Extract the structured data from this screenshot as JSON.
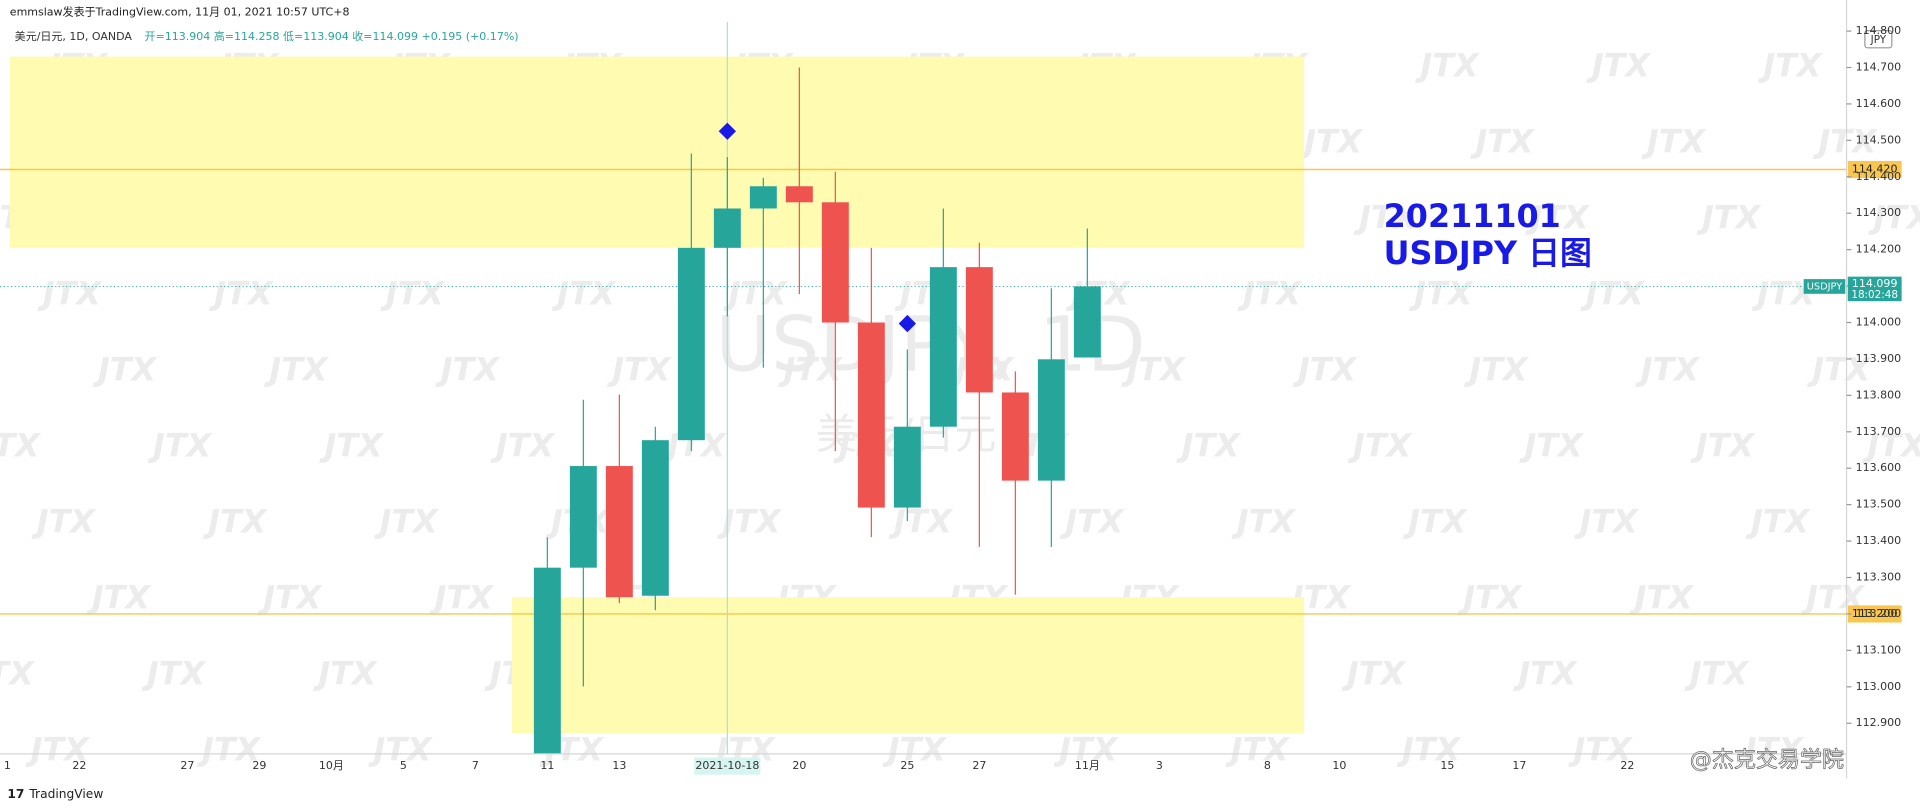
{
  "chart_data": {
    "type": "candlestick",
    "header_text": "emmslaw发表于TradingView.com, 11月 01, 2021 10:57 UTC+8",
    "legend_title": "美元/日元, 1D, OANDA",
    "legend_values": "开=113.904 高=114.258 低=113.904 收=114.099 +0.195 (+0.17%)",
    "watermark_symbol": "USDJPY, 1D",
    "watermark_desc": "美元/日元",
    "watermark_logo": "JTX",
    "annotation": [
      "20211101",
      "USDJPY 日图"
    ],
    "currency": "JPY",
    "branding": "TradingView",
    "source_watermark": "@杰克交易学院",
    "categories": [
      "1",
      null,
      "22",
      null,
      null,
      "27",
      null,
      "29",
      null,
      "10月",
      null,
      "5",
      null,
      "7",
      null,
      "11",
      null,
      "13",
      null,
      null,
      "2021-10-18",
      null,
      "20",
      null,
      null,
      "25",
      null,
      "27",
      null,
      null,
      "11月",
      null,
      "3",
      null,
      null,
      "8",
      null,
      "10",
      null,
      null,
      "15",
      null,
      "17",
      null,
      null,
      "22"
    ],
    "open": [
      null,
      null,
      null,
      null,
      null,
      null,
      null,
      null,
      null,
      null,
      null,
      null,
      null,
      null,
      null,
      112.8,
      113.327,
      113.606,
      113.25,
      113.677,
      114.205,
      114.313,
      114.374,
      114.33,
      114.0,
      113.492,
      113.714,
      114.152,
      113.808,
      113.566,
      113.904,
      null,
      null,
      null,
      null,
      null,
      null,
      null,
      null,
      null,
      null,
      null,
      null,
      null,
      null,
      null
    ],
    "high": [
      null,
      null,
      null,
      null,
      null,
      null,
      null,
      null,
      null,
      null,
      null,
      null,
      null,
      null,
      null,
      113.41,
      113.788,
      113.802,
      113.714,
      114.464,
      114.454,
      114.397,
      114.7,
      114.414,
      114.205,
      113.926,
      114.313,
      114.219,
      113.866,
      114.094,
      114.258,
      null,
      null,
      null,
      null,
      null,
      null,
      null,
      null,
      null,
      null,
      null,
      null,
      null,
      null,
      null
    ],
    "low": [
      null,
      null,
      null,
      null,
      null,
      null,
      null,
      null,
      null,
      null,
      null,
      null,
      null,
      null,
      null,
      112.78,
      113.001,
      113.23,
      113.21,
      113.647,
      114.017,
      113.876,
      114.078,
      113.647,
      113.411,
      113.455,
      113.684,
      113.384,
      113.253,
      113.384,
      113.904,
      null,
      null,
      null,
      null,
      null,
      null,
      null,
      null,
      null,
      null,
      null,
      null,
      null,
      null,
      null
    ],
    "close": [
      null,
      null,
      null,
      null,
      null,
      null,
      null,
      null,
      null,
      null,
      null,
      null,
      null,
      null,
      null,
      113.327,
      113.606,
      113.246,
      113.677,
      114.205,
      114.313,
      114.374,
      114.33,
      114.0,
      113.492,
      113.714,
      114.152,
      113.808,
      113.566,
      113.899,
      114.099,
      null,
      null,
      null,
      null,
      null,
      null,
      null,
      null,
      null,
      null,
      null,
      null,
      null,
      null,
      null
    ],
    "up_color": "#26a69a",
    "down_color": "#ef5350",
    "ylim": [
      112.816,
      114.818
    ],
    "yticks": [
      {
        "value": 112.9,
        "label": "112.900"
      },
      {
        "value": 113.0,
        "label": "113.000"
      },
      {
        "value": 113.1,
        "label": "113.100"
      },
      {
        "value": 113.2,
        "label": "113.200"
      },
      {
        "value": 113.3,
        "label": "113.300"
      },
      {
        "value": 113.4,
        "label": "113.400"
      },
      {
        "value": 113.5,
        "label": "113.500"
      },
      {
        "value": 113.6,
        "label": "113.600"
      },
      {
        "value": 113.7,
        "label": "113.700"
      },
      {
        "value": 113.8,
        "label": "113.800"
      },
      {
        "value": 113.9,
        "label": "113.900"
      },
      {
        "value": 114.0,
        "label": "114.000"
      },
      {
        "value": 114.1,
        "label": "114.100"
      },
      {
        "value": 114.2,
        "label": "114.200"
      },
      {
        "value": 114.3,
        "label": "114.300"
      },
      {
        "value": 114.4,
        "label": "114.400"
      },
      {
        "value": 114.5,
        "label": "114.500"
      },
      {
        "value": 114.6,
        "label": "114.600"
      },
      {
        "value": 114.7,
        "label": "114.700"
      },
      {
        "value": 114.8,
        "label": "114.800"
      }
    ],
    "levels": [
      {
        "value": 114.42,
        "label": "114.420"
      },
      {
        "value": 113.2,
        "label": "113.200"
      }
    ],
    "zones": [
      {
        "from": 114.73,
        "to": 114.205
      },
      {
        "from": 113.246,
        "to": 112.873
      }
    ],
    "markers": [
      114.525,
      113.997
    ],
    "last_price": {
      "symbol": "USDJPY",
      "value": 114.099,
      "label": "114.099",
      "countdown": "18:02:48"
    }
  }
}
